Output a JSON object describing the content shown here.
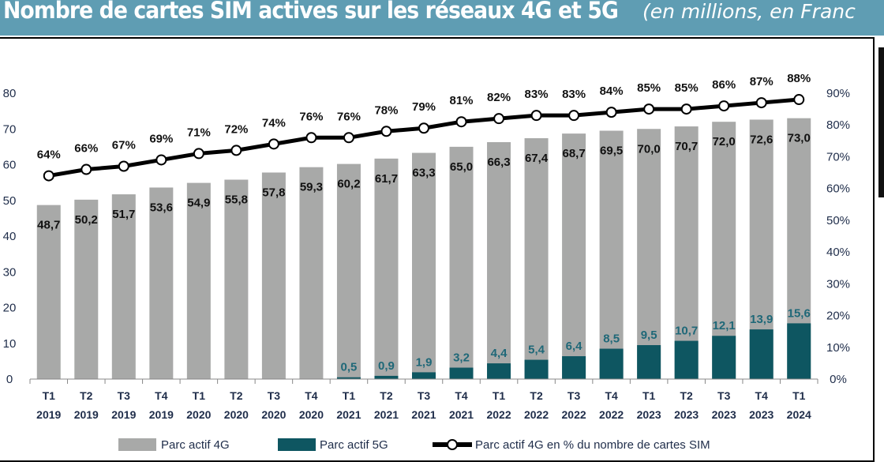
{
  "header": {
    "title": "Nombre de cartes SIM actives sur les réseaux 4G et 5G",
    "subtitle": "(en millions, en Franc"
  },
  "chart_data": {
    "type": "bar",
    "title": "Nombre de cartes SIM actives sur les réseaux 4G et 5G",
    "subtitle": "(en millions, en Franc",
    "categories": [
      "T1 2019",
      "T2 2019",
      "T3 2019",
      "T4 2019",
      "T1 2020",
      "T2 2020",
      "T3 2020",
      "T4 2020",
      "T1 2021",
      "T2 2021",
      "T3 2021",
      "T4 2021",
      "T1 2022",
      "T2 2022",
      "T3 2022",
      "T4 2022",
      "T1 2023",
      "T2 2023",
      "T3 2023",
      "T4 2023",
      "T1 2024"
    ],
    "series": [
      {
        "name": "Parc actif 4G",
        "type": "bar",
        "axis": "left",
        "color": "#a8a9a8",
        "values": [
          48.7,
          50.2,
          51.7,
          53.6,
          54.9,
          55.8,
          57.8,
          59.3,
          60.2,
          61.7,
          63.3,
          65.0,
          66.3,
          67.4,
          68.7,
          69.5,
          70.0,
          70.7,
          72.0,
          72.6,
          73.0
        ]
      },
      {
        "name": "Parc actif 5G",
        "type": "bar",
        "axis": "left",
        "color": "#0e5661",
        "values": [
          null,
          null,
          null,
          null,
          null,
          null,
          null,
          null,
          0.5,
          0.9,
          1.9,
          3.2,
          4.4,
          5.4,
          6.4,
          8.5,
          9.5,
          10.7,
          12.1,
          13.9,
          15.6
        ]
      },
      {
        "name": "Parc actif 4G en % du nombre de cartes SIM",
        "type": "line",
        "axis": "right",
        "color": "#000000",
        "values": [
          64,
          66,
          67,
          69,
          71,
          72,
          74,
          76,
          76,
          78,
          79,
          81,
          82,
          83,
          83,
          84,
          85,
          85,
          86,
          87,
          88
        ]
      }
    ],
    "left_axis": {
      "min": 0,
      "max": 80,
      "ticks": [
        0,
        10,
        20,
        30,
        40,
        50,
        60,
        70,
        80
      ]
    },
    "right_axis": {
      "min": 0,
      "max": 90,
      "ticks": [
        "0%",
        "10%",
        "20%",
        "30%",
        "40%",
        "50%",
        "60%",
        "70%",
        "80%",
        "90%"
      ]
    },
    "grid": false,
    "legend": "bottom"
  }
}
